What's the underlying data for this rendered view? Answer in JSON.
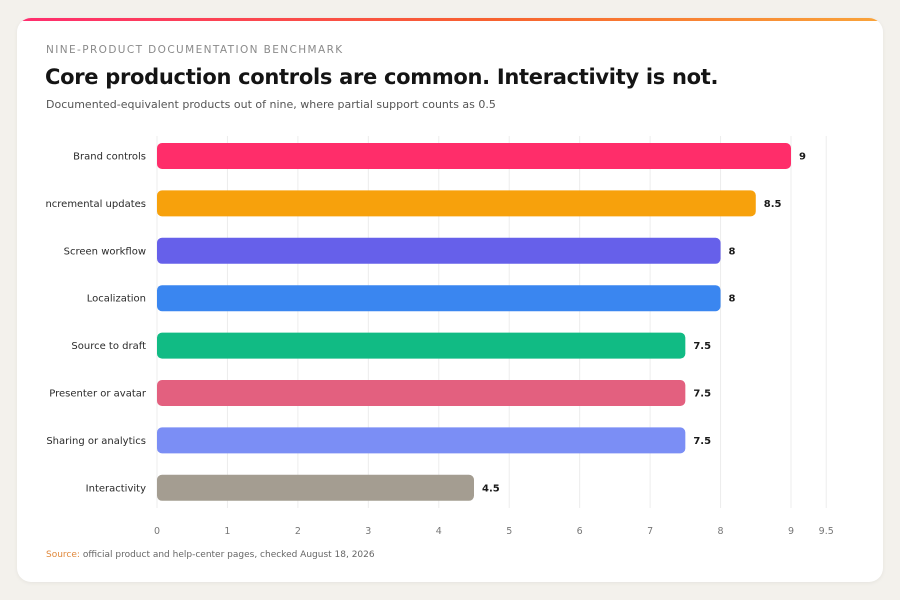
{
  "header": {
    "eyebrow": "NINE-PRODUCT DOCUMENTATION BENCHMARK",
    "title": "Core production controls are common. Interactivity is not.",
    "subtitle": "Documented-equivalent products out of nine, where partial support counts as 0.5"
  },
  "footer": {
    "source_label": "Source:",
    "source_text": "official product and help-center pages, checked August 18, 2026"
  },
  "chart_data": {
    "type": "bar",
    "orientation": "horizontal",
    "title": "Core production controls are common. Interactivity is not.",
    "subtitle": "Documented-equivalent products out of nine, where partial support counts as 0.5",
    "categories": [
      "Brand controls",
      "ncremental updates",
      "Screen workflow",
      "Localization",
      "Source to draft",
      "Presenter or avatar",
      "Sharing or analytics",
      "Interactivity"
    ],
    "values": [
      9,
      8.5,
      8,
      8,
      7.5,
      7.5,
      7.5,
      4.5
    ],
    "value_labels": [
      "9",
      "8.5",
      "8",
      "8",
      "7.5",
      "7.5",
      "7.5",
      "4.5"
    ],
    "colors": [
      "#ff2d6a",
      "#f7a10c",
      "#6660ea",
      "#3a86f0",
      "#11bb84",
      "#e3607f",
      "#7b8ef5",
      "#a49d91"
    ],
    "xticks": [
      0,
      1,
      2,
      3,
      4,
      5,
      6,
      7,
      8,
      9,
      9.5
    ],
    "xtick_labels": [
      "0",
      "1",
      "2",
      "3",
      "4",
      "5",
      "6",
      "7",
      "8",
      "9",
      "9.5"
    ],
    "xlim": [
      0,
      9.5
    ],
    "grid": true,
    "xlabel": "",
    "ylabel": ""
  }
}
